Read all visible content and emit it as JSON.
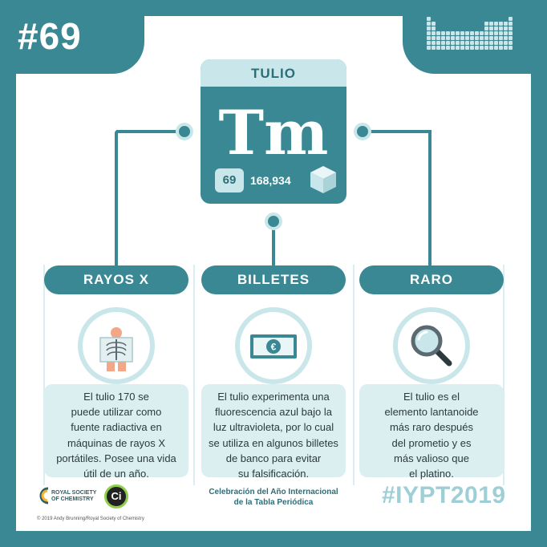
{
  "badge": {
    "number": "#69"
  },
  "element": {
    "name": "TULIO",
    "symbol": "Tm",
    "atomic_number": "69",
    "atomic_mass": "168,934",
    "icon": "cube-icon"
  },
  "columns": [
    {
      "title": "RAYOS X",
      "icon": "xray-icon",
      "lines": [
        "El tulio 170 se",
        "puede utilizar como",
        "fuente radiactiva en",
        "máquinas de rayos X",
        "portátiles. Posee una vida",
        "útil de un año."
      ]
    },
    {
      "title": "BILLETES",
      "icon": "banknote-icon",
      "lines": [
        "El tulio experimenta una",
        "fluorescencia azul bajo la",
        "luz ultravioleta, por lo cual",
        "se utiliza en algunos billetes",
        "de banco para evitar",
        "su falsificación."
      ]
    },
    {
      "title": "RARO",
      "icon": "magnifier-icon",
      "lines": [
        "El tulio es el",
        "elemento lantanoide",
        "más raro después",
        "del prometio y es",
        "más valioso que",
        "el platino."
      ]
    }
  ],
  "footer": {
    "rsc_line1": "ROYAL SOCIETY",
    "rsc_line2": "OF CHEMISTRY",
    "ci_label": "Ci",
    "copyright": "© 2019 Andy Brunning/Royal Society of Chemistry",
    "celebration_line1": "Celebración del Año Internacional",
    "celebration_line2": "de la Tabla Periódica",
    "hashtag": "#IYPT2019"
  },
  "colors": {
    "teal": "#3a8893",
    "light_teal": "#c9e7ea",
    "pale_box": "#dbeef0",
    "hashtag": "#9fcfd6"
  }
}
